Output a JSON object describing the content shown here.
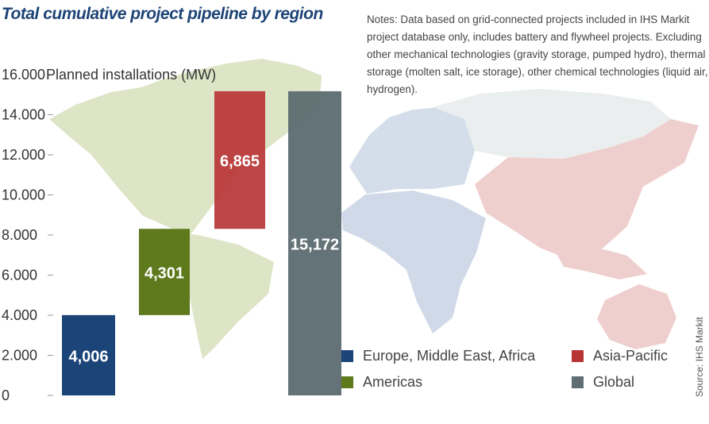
{
  "title": "Total cumulative project pipeline by region",
  "notes": "Notes: Data based on grid-connected projects included in IHS Markit project database only, includes battery and flywheel projects. Excluding other mechanical technologies (gravity storage, pumped hydro), thermal storage (molten salt, ice storage), other chemical technologies (liquid air, hydrogen).",
  "source": "Source: IHS Markit",
  "chart_data": {
    "type": "bar",
    "title": "Total cumulative project pipeline by region",
    "ylabel": "Planned installations (MW)",
    "ylim": [
      0,
      16000
    ],
    "yticks": [
      0,
      2000,
      4000,
      6000,
      8000,
      10000,
      12000,
      14000,
      16000
    ],
    "ytick_labels": [
      "0",
      "2.000",
      "4.000",
      "6.000",
      "8.000",
      "10.000",
      "12.000",
      "14.000",
      "16.000"
    ],
    "bars": [
      {
        "name": "Europe, Middle East, Africa",
        "label": "4,006",
        "value": 4006,
        "base": 0,
        "color": "#1b4479"
      },
      {
        "name": "Americas",
        "label": "4,301",
        "value": 4301,
        "base": 4006,
        "color": "#5e7a1d"
      },
      {
        "name": "Asia-Pacific",
        "label": "6,865",
        "value": 6865,
        "base": 8307,
        "color": "#b83535"
      },
      {
        "name": "Global",
        "label": "15,172",
        "value": 15172,
        "base": 0,
        "color": "#5f6e73"
      }
    ],
    "legend": [
      {
        "name": "Europe, Middle East, Africa",
        "color": "#1b4479"
      },
      {
        "name": "Asia-Pacific",
        "color": "#b83535"
      },
      {
        "name": "Americas",
        "color": "#5e7a1d"
      },
      {
        "name": "Global",
        "color": "#5f6e73"
      }
    ],
    "legend_position": "bottom-right",
    "background": "world-map"
  }
}
